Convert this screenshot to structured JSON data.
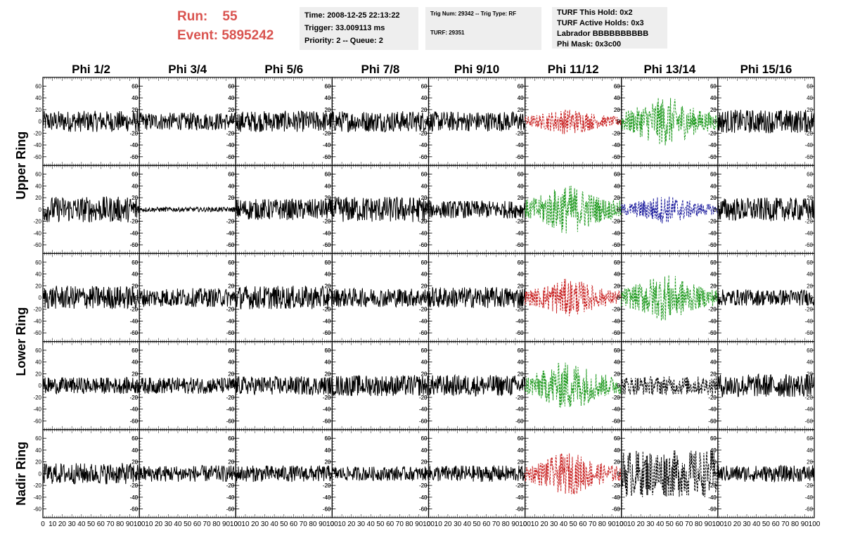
{
  "header": {
    "run_label": "Run:",
    "run_value": "55",
    "event_label": "Event:",
    "event_value": "5895242",
    "run_color": "#d9534f"
  },
  "info_box_1": {
    "time": "Time: 2008-12-25 22:13:22",
    "trigger": "Trigger: 33.009113 ms",
    "priority": "Priority: 2 -- Queue: 2"
  },
  "info_box_2": {
    "trig": "Trig Num: 29342 -- Trig Type: RF",
    "turf": "TURF: 29351"
  },
  "info_box_3": {
    "this_hold": "TURF This Hold: 0x2",
    "active_holds": "TURF Active Holds: 0x3",
    "labrador": "Labrador BBBBBBBBBB",
    "phi_mask": "Phi Mask: 0x3c00"
  },
  "chart_data": {
    "type": "line",
    "columns": [
      "Phi 1/2",
      "Phi 3/4",
      "Phi 5/6",
      "Phi 7/8",
      "Phi 9/10",
      "Phi 11/12",
      "Phi 13/14",
      "Phi 15/16"
    ],
    "row_groups": [
      {
        "label": "Upper Ring",
        "rows": [
          0,
          1
        ]
      },
      {
        "label": "Lower Ring",
        "rows": [
          2,
          3
        ]
      },
      {
        "label": "Nadir Ring",
        "rows": [
          4
        ]
      }
    ],
    "xlim": [
      0,
      100
    ],
    "ylim": [
      -70,
      70
    ],
    "x_ticks": [
      "0",
      "10",
      "20",
      "30",
      "40",
      "50",
      "60",
      "70",
      "80",
      "90",
      "100"
    ],
    "y_ticks": [
      "-60",
      "-40",
      "-20",
      "0",
      "20",
      "40",
      "60"
    ],
    "colors": {
      "black": "#000000",
      "red": "#c81e1e",
      "green": "#1f9a1f",
      "blue": "#1e1e9e"
    },
    "panels": [
      [
        {
          "color": "black",
          "amplitude": 18,
          "style": "solid"
        },
        {
          "color": "black",
          "amplitude": 15,
          "style": "solid"
        },
        {
          "color": "black",
          "amplitude": 18,
          "style": "solid"
        },
        {
          "color": "black",
          "amplitude": 18,
          "style": "solid"
        },
        {
          "color": "black",
          "amplitude": 17,
          "style": "solid"
        },
        {
          "color": "red",
          "amplitude": 22,
          "style": "dashed"
        },
        {
          "color": "green",
          "amplitude": 42,
          "style": "dashed"
        },
        {
          "color": "black",
          "amplitude": 20,
          "style": "solid"
        }
      ],
      [
        {
          "color": "black",
          "amplitude": 22,
          "style": "solid"
        },
        {
          "color": "black",
          "amplitude": 4,
          "style": "solid"
        },
        {
          "color": "black",
          "amplitude": 18,
          "style": "solid"
        },
        {
          "color": "black",
          "amplitude": 22,
          "style": "solid"
        },
        {
          "color": "black",
          "amplitude": 15,
          "style": "solid"
        },
        {
          "color": "green",
          "amplitude": 42,
          "style": "dashed"
        },
        {
          "color": "blue",
          "amplitude": 24,
          "style": "dashed"
        },
        {
          "color": "black",
          "amplitude": 20,
          "style": "solid"
        }
      ],
      [
        {
          "color": "black",
          "amplitude": 20,
          "style": "solid"
        },
        {
          "color": "black",
          "amplitude": 16,
          "style": "solid"
        },
        {
          "color": "black",
          "amplitude": 20,
          "style": "solid"
        },
        {
          "color": "black",
          "amplitude": 16,
          "style": "solid"
        },
        {
          "color": "black",
          "amplitude": 18,
          "style": "solid"
        },
        {
          "color": "red",
          "amplitude": 32,
          "style": "dashed"
        },
        {
          "color": "green",
          "amplitude": 40,
          "style": "dashed"
        },
        {
          "color": "black",
          "amplitude": 14,
          "style": "solid"
        }
      ],
      [
        {
          "color": "black",
          "amplitude": 14,
          "style": "solid"
        },
        {
          "color": "black",
          "amplitude": 14,
          "style": "solid"
        },
        {
          "color": "black",
          "amplitude": 16,
          "style": "solid"
        },
        {
          "color": "black",
          "amplitude": 18,
          "style": "solid"
        },
        {
          "color": "black",
          "amplitude": 18,
          "style": "solid"
        },
        {
          "color": "green",
          "amplitude": 42,
          "style": "dashed"
        },
        {
          "color": "black",
          "amplitude": 16,
          "style": "dashed"
        },
        {
          "color": "black",
          "amplitude": 20,
          "style": "solid"
        }
      ],
      [
        {
          "color": "black",
          "amplitude": 18,
          "style": "solid"
        },
        {
          "color": "black",
          "amplitude": 14,
          "style": "solid"
        },
        {
          "color": "black",
          "amplitude": 14,
          "style": "solid"
        },
        {
          "color": "black",
          "amplitude": 12,
          "style": "solid"
        },
        {
          "color": "black",
          "amplitude": 14,
          "style": "solid"
        },
        {
          "color": "red",
          "amplitude": 36,
          "style": "dashed"
        },
        {
          "color": "black",
          "amplitude": 40,
          "style": "dashed"
        },
        {
          "color": "black",
          "amplitude": 14,
          "style": "solid"
        }
      ]
    ]
  }
}
